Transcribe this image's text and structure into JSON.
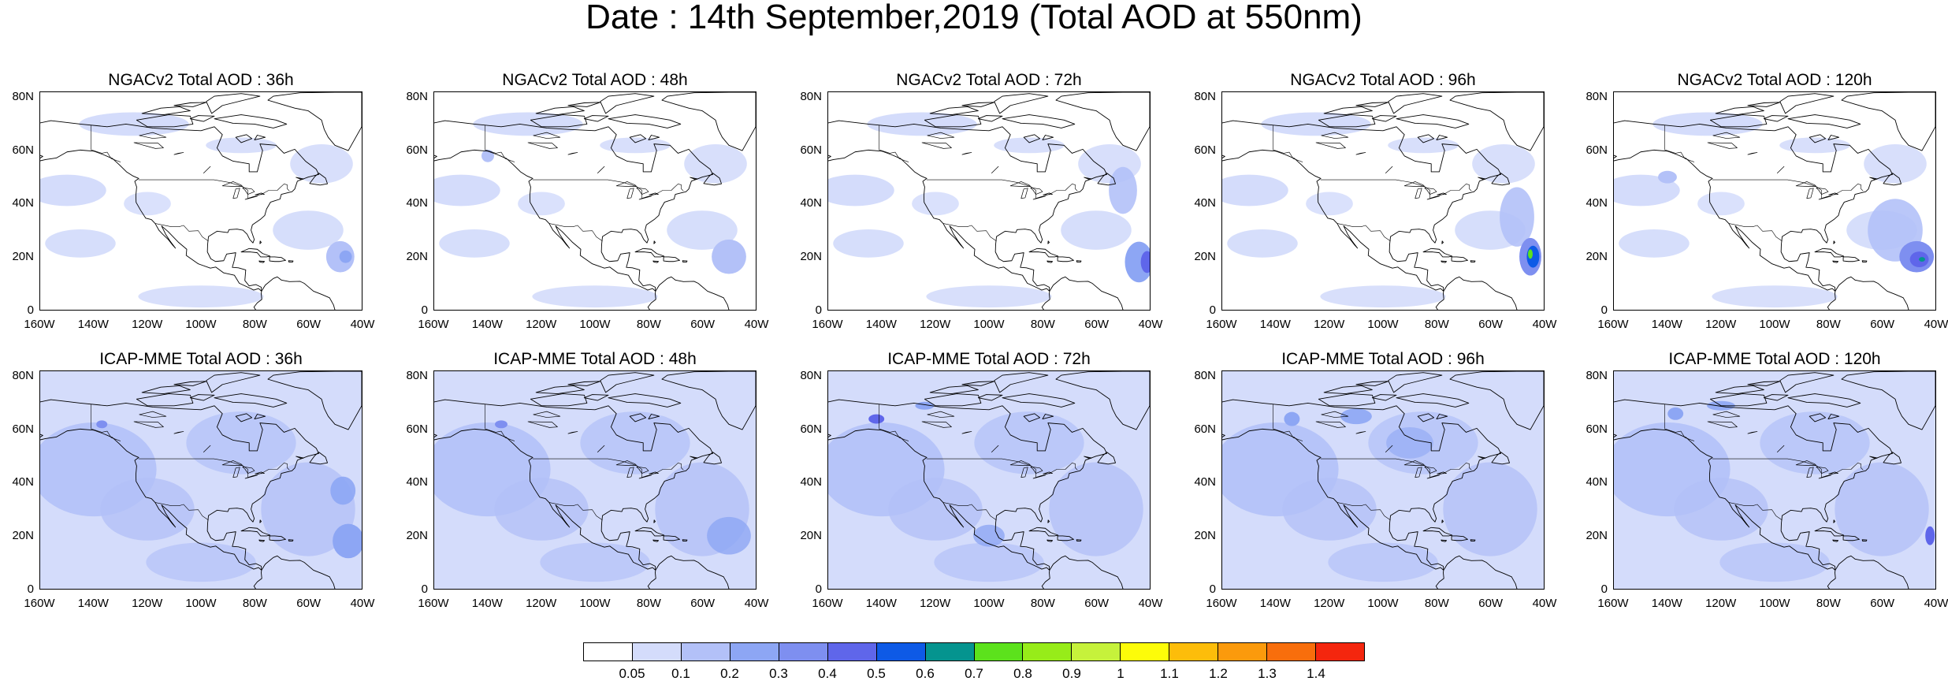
{
  "title": "Date : 14th September,2019 (Total AOD at 550nm)",
  "panels": [
    {
      "title": "NGACv2 Total AOD : 36h",
      "model": "ngac",
      "lead": 36
    },
    {
      "title": "NGACv2 Total AOD : 48h",
      "model": "ngac",
      "lead": 48
    },
    {
      "title": "NGACv2 Total AOD : 72h",
      "model": "ngac",
      "lead": 72
    },
    {
      "title": "NGACv2 Total AOD : 96h",
      "model": "ngac",
      "lead": 96
    },
    {
      "title": "NGACv2 Total AOD : 120h",
      "model": "ngac",
      "lead": 120
    },
    {
      "title": "ICAP-MME Total AOD : 36h",
      "model": "icap",
      "lead": 36
    },
    {
      "title": "ICAP-MME Total AOD : 48h",
      "model": "icap",
      "lead": 48
    },
    {
      "title": "ICAP-MME Total AOD : 72h",
      "model": "icap",
      "lead": 72
    },
    {
      "title": "ICAP-MME Total AOD : 96h",
      "model": "icap",
      "lead": 96
    },
    {
      "title": "ICAP-MME Total AOD : 120h",
      "model": "icap",
      "lead": 120
    }
  ],
  "lat_ticks": [
    "80N",
    "60N",
    "40N",
    "20N",
    "0"
  ],
  "lon_ticks": [
    "160W",
    "140W",
    "120W",
    "100W",
    "80W",
    "60W",
    "40W"
  ],
  "colorbar": {
    "colors": [
      "#ffffff",
      "#d4dcfb",
      "#b3c1f8",
      "#8da6f4",
      "#7e8ff0",
      "#5f66ea",
      "#0e5ae6",
      "#05948f",
      "#5ce21c",
      "#97ec19",
      "#c6f23b",
      "#fdfc09",
      "#fdbd0a",
      "#fb9a0c",
      "#f86e0c",
      "#f4260e"
    ],
    "labels": [
      "0.05",
      "0.1",
      "0.2",
      "0.3",
      "0.4",
      "0.5",
      "0.6",
      "0.7",
      "0.8",
      "0.9",
      "1",
      "1.1",
      "1.2",
      "1.3",
      "1.4"
    ]
  }
}
